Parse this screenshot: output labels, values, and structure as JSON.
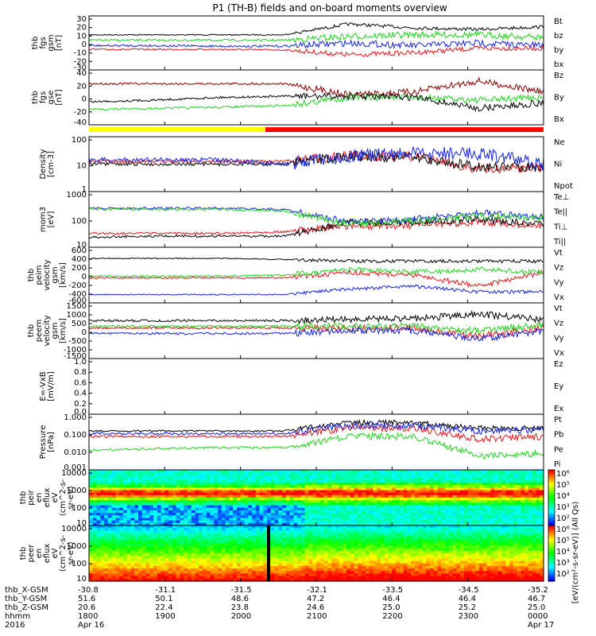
{
  "title": "P1 (TH-B) fields and on-board moments overview",
  "colors": {
    "black": "#000000",
    "red": "#e0191b",
    "green": "#21d31f",
    "blue": "#1523e3",
    "darkred": "#8b0000",
    "yellow": "#ffff00",
    "barred": "#ff0000",
    "bright_green": "#33ee22"
  },
  "chart_data": [
    {
      "type": "line",
      "name": "fgs_gsm",
      "ylabel": [
        "thb",
        "fgs",
        "gsm",
        "[nT]"
      ],
      "yticks": [
        "30",
        "20",
        "10",
        "0",
        "-10",
        "-20",
        "-30"
      ],
      "ylim": [
        -30,
        30
      ],
      "series": [
        {
          "name": "Bt",
          "color": "#000000"
        },
        {
          "name": "bz",
          "color": "#e0191b"
        },
        {
          "name": "by",
          "color": "#21d31f"
        },
        {
          "name": "bx",
          "color": "#1523e3"
        }
      ]
    },
    {
      "type": "line",
      "name": "fgs_gse",
      "ylabel": [
        "thb",
        "fgs",
        "gse",
        "[nT]"
      ],
      "yticks": [
        "40",
        "20",
        "0",
        "-20",
        "-40"
      ],
      "ylim": [
        -50,
        40
      ],
      "series": [
        {
          "name": "Bz",
          "color": "#8b0000"
        },
        {
          "name": "By",
          "color": "#21d31f"
        },
        {
          "name": "Bx",
          "color": "#000000"
        }
      ]
    },
    {
      "type": "line",
      "name": "density",
      "log": true,
      "ylabel": [
        "Density",
        "[cm-3]"
      ],
      "yticks": [
        "100",
        "10",
        "1"
      ],
      "series": [
        {
          "name": "Ne",
          "color": "#e0191b"
        },
        {
          "name": "Ni",
          "color": "#000000"
        },
        {
          "name": "Npot",
          "color": "#1523e3"
        }
      ]
    },
    {
      "type": "line",
      "name": "temperature",
      "log": true,
      "ylabel": [
        "mom3",
        "[eV]"
      ],
      "yticks": [
        "1000",
        "100",
        "10"
      ],
      "series": [
        {
          "name": "Te⊥",
          "color": "#e0191b"
        },
        {
          "name": "Te||",
          "color": "#000000"
        },
        {
          "name": "Ti⊥",
          "color": "#1523e3"
        },
        {
          "name": "Ti||",
          "color": "#21d31f"
        }
      ]
    },
    {
      "type": "line",
      "name": "peim_velocity",
      "ylabel": [
        "thb",
        "peim",
        "velocity",
        "gsm",
        "[km/s]"
      ],
      "yticks": [
        "600",
        "400",
        "200",
        "0",
        "-200",
        "-400",
        "-600"
      ],
      "ylim": [
        -600,
        600
      ],
      "series": [
        {
          "name": "Vt",
          "color": "#000000"
        },
        {
          "name": "Vz",
          "color": "#e0191b"
        },
        {
          "name": "Vy",
          "color": "#21d31f"
        },
        {
          "name": "Vx",
          "color": "#1523e3"
        }
      ]
    },
    {
      "type": "line",
      "name": "peem_velocity",
      "ylabel": [
        "thb",
        "peem",
        "velocity",
        "gsm",
        "[km/s]"
      ],
      "yticks": [
        "1500",
        "1000",
        "500",
        "0",
        "-500",
        "-1000",
        "-1500"
      ],
      "ylim": [
        -1500,
        1500
      ],
      "series": [
        {
          "name": "Vt",
          "color": "#000000"
        },
        {
          "name": "Vz",
          "color": "#e0191b"
        },
        {
          "name": "Vy",
          "color": "#21d31f"
        },
        {
          "name": "Vx",
          "color": "#1523e3"
        }
      ]
    },
    {
      "type": "line",
      "name": "efield",
      "ylabel": [
        "E=-VxB",
        "[mV/m]"
      ],
      "yticks": [
        "1.0",
        "0.8",
        "0.6",
        "0.4",
        "0.2",
        "0.0"
      ],
      "ylim": [
        0,
        1
      ],
      "series": [
        {
          "name": "Ez",
          "color": "#e0191b"
        },
        {
          "name": "Ey",
          "color": "#21d31f"
        },
        {
          "name": "Ex",
          "color": "#1523e3"
        }
      ]
    },
    {
      "type": "line",
      "name": "pressure",
      "log": true,
      "ylabel": [
        "Pressure",
        "[nPa]"
      ],
      "yticks": [
        "1.000",
        "0.100",
        "0.010",
        "0.001"
      ],
      "series": [
        {
          "name": "Pt",
          "color": "#000000"
        },
        {
          "name": "Pb",
          "color": "#e0191b"
        },
        {
          "name": "Pe",
          "color": "#21d31f"
        },
        {
          "name": "Pi",
          "color": "#1523e3"
        }
      ]
    },
    {
      "type": "heatmap",
      "name": "peir_spectrogram",
      "ylabel": [
        "thb",
        "peir",
        "en",
        "eflux",
        "eV",
        "(cm^2-s-",
        "sr-eV)"
      ],
      "yticks": [
        "10000",
        "1000",
        "100",
        "10"
      ],
      "colorbar_ticks": [
        "10⁶",
        "10⁵",
        "10⁴",
        "10³",
        "10²"
      ]
    },
    {
      "type": "heatmap",
      "name": "peer_spectrogram",
      "ylabel": [
        "thb",
        "peer",
        "en",
        "eflux",
        "eV",
        "(cm^2-s-",
        "sr-eV)"
      ],
      "yticks": [
        "10000",
        "1000",
        "100",
        "10"
      ],
      "colorbar_ticks": [
        "10⁶",
        "10⁵",
        "10⁴",
        "10³",
        "10²"
      ]
    }
  ],
  "colorbar_label": "[eV/(cm²-s-sr-eV)] (All Qs)",
  "xaxis": {
    "row_labels": [
      "thb_X-GSM",
      "thb_Y-GSM",
      "thb_Z-GSM",
      "hhmm",
      "2016"
    ],
    "columns": [
      {
        "x": "-30.8",
        "y": "51.6",
        "z": "20.6",
        "hhmm": "1800",
        "date": "Apr 16"
      },
      {
        "x": "-31.1",
        "y": "50.1",
        "z": "22.4",
        "hhmm": "1900",
        "date": ""
      },
      {
        "x": "-31.5",
        "y": "48.6",
        "z": "23.8",
        "hhmm": "2000",
        "date": ""
      },
      {
        "x": "-32.1",
        "y": "47.2",
        "z": "24.6",
        "hhmm": "2100",
        "date": ""
      },
      {
        "x": "-33.5",
        "y": "46.4",
        "z": "25.0",
        "hhmm": "2200",
        "date": ""
      },
      {
        "x": "-34.5",
        "y": "46.4",
        "z": "25.2",
        "hhmm": "2300",
        "date": ""
      },
      {
        "x": "-35.2",
        "y": "46.7",
        "z": "25.0",
        "hhmm": "0000",
        "date": "Apr 17"
      }
    ]
  }
}
